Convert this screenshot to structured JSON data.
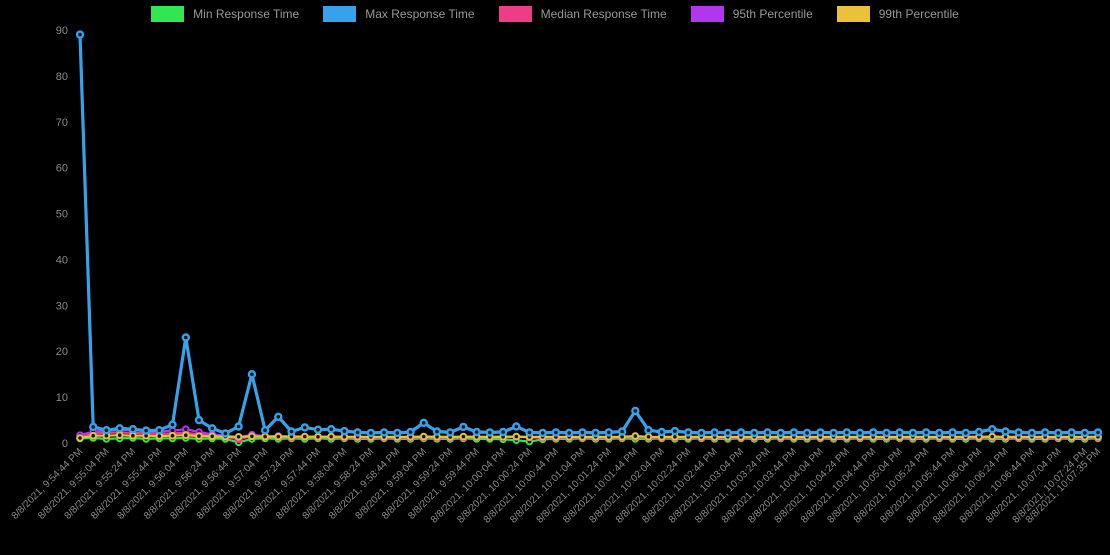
{
  "colors": {
    "background": "#000000",
    "axis_text": "#8b8b8b",
    "legend_text": "#999999"
  },
  "chart_data": {
    "type": "line",
    "title": "",
    "legend_position": "top",
    "grid": false,
    "ylim": [
      0,
      90
    ],
    "yticks": [
      0,
      10,
      20,
      30,
      40,
      50,
      60,
      70,
      80,
      90
    ],
    "x_points": 78,
    "x_labels": [
      "8/8/2021, 9:54:44 PM",
      "8/8/2021, 9:55:04 PM",
      "8/8/2021, 9:55:24 PM",
      "8/8/2021, 9:55:44 PM",
      "8/8/2021, 9:56:04 PM",
      "8/8/2021, 9:56:24 PM",
      "8/8/2021, 9:56:44 PM",
      "8/8/2021, 9:57:04 PM",
      "8/8/2021, 9:57:24 PM",
      "8/8/2021, 9:57:44 PM",
      "8/8/2021, 9:58:04 PM",
      "8/8/2021, 9:58:24 PM",
      "8/8/2021, 9:58:44 PM",
      "8/8/2021, 9:59:04 PM",
      "8/8/2021, 9:59:24 PM",
      "8/8/2021, 9:59:44 PM",
      "8/8/2021, 10:00:04 PM",
      "8/8/2021, 10:00:24 PM",
      "8/8/2021, 10:00:44 PM",
      "8/8/2021, 10:01:04 PM",
      "8/8/2021, 10:01:24 PM",
      "8/8/2021, 10:01:44 PM",
      "8/8/2021, 10:02:04 PM",
      "8/8/2021, 10:02:24 PM",
      "8/8/2021, 10:02:44 PM",
      "8/8/2021, 10:03:04 PM",
      "8/8/2021, 10:03:24 PM",
      "8/8/2021, 10:03:44 PM",
      "8/8/2021, 10:04:04 PM",
      "8/8/2021, 10:04:24 PM",
      "8/8/2021, 10:04:44 PM",
      "8/8/2021, 10:05:04 PM",
      "8/8/2021, 10:05:24 PM",
      "8/8/2021, 10:05:44 PM",
      "8/8/2021, 10:06:04 PM",
      "8/8/2021, 10:06:24 PM",
      "8/8/2021, 10:06:44 PM",
      "8/8/2021, 10:07:04 PM",
      "8/8/2021, 10:07:24 PM",
      "8/8/2021, 10:07:35 PM"
    ],
    "series": [
      {
        "name": "Min Response Time",
        "color": "#33e550",
        "values": [
          1.0,
          1.1,
          0.9,
          1.0,
          1.1,
          0.9,
          1.0,
          1.0,
          1.1,
          0.9,
          1.0,
          0.9,
          0.15,
          0.9,
          1.0,
          0.9,
          1.0,
          0.9,
          1.0,
          0.9,
          1.0,
          0.9,
          0.9,
          1.0,
          0.9,
          0.9,
          1.0,
          0.9,
          0.9,
          1.0,
          0.9,
          0.9,
          0.8,
          0.6,
          0.3,
          0.8,
          0.9,
          0.9,
          1.0,
          0.9,
          0.9,
          1.0,
          0.9,
          0.9,
          1.0,
          0.9,
          0.9,
          1.0,
          0.9,
          0.9,
          1.0,
          0.9,
          0.9,
          1.0,
          0.9,
          0.9,
          1.0,
          0.9,
          0.9,
          1.0,
          0.9,
          0.9,
          1.0,
          0.9,
          0.9,
          1.0,
          0.9,
          0.9,
          1.0,
          0.9,
          0.9,
          1.0,
          0.9,
          0.9,
          1.0,
          0.9,
          0.9,
          1.0
        ]
      },
      {
        "name": "Max Response Time",
        "color": "#36a2eb",
        "values": [
          89,
          3.5,
          2.8,
          3.2,
          3.0,
          2.7,
          2.8,
          4.0,
          23,
          5.0,
          3.2,
          2.1,
          3.6,
          15,
          2.8,
          5.7,
          2.5,
          3.4,
          2.9,
          3.0,
          2.6,
          2.3,
          2.2,
          2.3,
          2.2,
          2.4,
          4.4,
          2.5,
          2.3,
          3.5,
          2.4,
          2.3,
          2.4,
          3.6,
          2.3,
          2.2,
          2.3,
          2.2,
          2.3,
          2.2,
          2.3,
          2.5,
          7.0,
          2.8,
          2.4,
          2.6,
          2.3,
          2.2,
          2.3,
          2.2,
          2.3,
          2.2,
          2.3,
          2.2,
          2.3,
          2.2,
          2.3,
          2.2,
          2.3,
          2.2,
          2.3,
          2.2,
          2.3,
          2.2,
          2.3,
          2.2,
          2.3,
          2.2,
          2.4,
          3.0,
          2.5,
          2.3,
          2.2,
          2.3,
          2.2,
          2.3,
          2.2,
          2.3
        ]
      },
      {
        "name": "Median Response Time",
        "color": "#ee3d86",
        "values": [
          1.6,
          2.1,
          2.2,
          2.3,
          2.2,
          2.1,
          2.0,
          2.1,
          2.2,
          1.9,
          1.7,
          1.4,
          0.8,
          1.5,
          1.3,
          1.3,
          1.25,
          1.3,
          1.25,
          1.3,
          1.2,
          1.2,
          1.2,
          1.2,
          1.2,
          1.2,
          1.25,
          1.2,
          1.2,
          1.25,
          1.3,
          1.35,
          1.4,
          1.35,
          1.2,
          1.2,
          1.2,
          1.2,
          1.2,
          1.2,
          1.2,
          1.2,
          1.3,
          1.2,
          1.2,
          1.2,
          1.2,
          1.2,
          1.2,
          1.2,
          1.2,
          1.2,
          1.2,
          1.2,
          1.2,
          1.2,
          1.2,
          1.2,
          1.2,
          1.2,
          1.2,
          1.2,
          1.2,
          1.2,
          1.2,
          1.2,
          1.2,
          1.2,
          1.2,
          1.25,
          1.2,
          1.2,
          1.2,
          1.2,
          1.2,
          1.2,
          1.2,
          1.2
        ]
      },
      {
        "name": "95th Percentile",
        "color": "#b136ee",
        "values": [
          1.7,
          2.5,
          2.7,
          2.9,
          2.8,
          2.6,
          2.5,
          2.7,
          3.0,
          2.4,
          1.9,
          1.6,
          1.2,
          1.8,
          1.5,
          1.5,
          1.45,
          1.4,
          1.4,
          1.4,
          1.35,
          1.3,
          1.3,
          1.3,
          1.3,
          1.3,
          1.4,
          1.3,
          1.3,
          1.35,
          1.3,
          1.3,
          1.3,
          1.35,
          1.3,
          1.3,
          1.3,
          1.3,
          1.3,
          1.3,
          1.3,
          1.3,
          1.5,
          1.3,
          1.3,
          1.3,
          1.3,
          1.3,
          1.3,
          1.3,
          1.3,
          1.3,
          1.3,
          1.3,
          1.3,
          1.3,
          1.3,
          1.3,
          1.3,
          1.3,
          1.3,
          1.3,
          1.3,
          1.3,
          1.3,
          1.3,
          1.3,
          1.3,
          1.3,
          1.35,
          1.3,
          1.3,
          1.3,
          1.3,
          1.3,
          1.3,
          1.3,
          1.3
        ]
      },
      {
        "name": "99th Percentile",
        "color": "#e9c23a",
        "values": [
          1.1,
          1.6,
          1.6,
          1.7,
          1.6,
          1.6,
          1.5,
          1.6,
          1.7,
          1.5,
          1.45,
          1.4,
          1.35,
          1.45,
          1.4,
          1.4,
          1.4,
          1.4,
          1.35,
          1.4,
          1.35,
          1.35,
          1.3,
          1.35,
          1.3,
          1.35,
          1.4,
          1.35,
          1.3,
          1.4,
          1.35,
          1.3,
          1.35,
          1.4,
          1.3,
          1.35,
          1.3,
          1.35,
          1.3,
          1.35,
          1.3,
          1.35,
          1.5,
          1.35,
          1.3,
          1.35,
          1.3,
          1.35,
          1.3,
          1.35,
          1.3,
          1.35,
          1.3,
          1.35,
          1.3,
          1.35,
          1.3,
          1.35,
          1.3,
          1.35,
          1.3,
          1.35,
          1.3,
          1.35,
          1.3,
          1.35,
          1.3,
          1.35,
          1.35,
          1.4,
          1.35,
          1.3,
          1.35,
          1.3,
          1.35,
          1.3,
          1.35,
          1.35
        ]
      }
    ]
  }
}
